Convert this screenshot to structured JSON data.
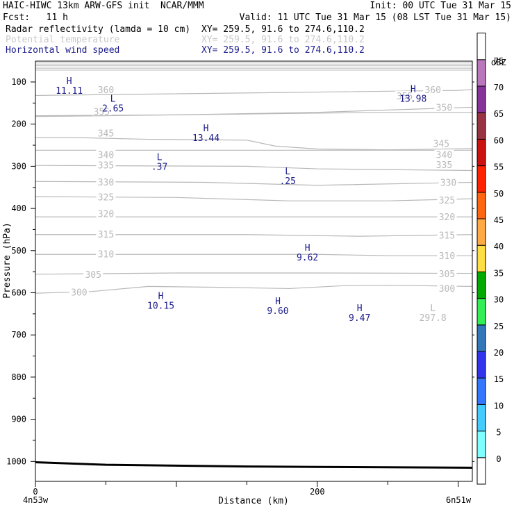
{
  "header": {
    "title": "HAIC-HIWC 13km ARW-GFS init  NCAR/MMM",
    "init": "Init: 00 UTC Tue 31 Mar 15",
    "fcst": "Fcst:   11 h",
    "valid": "Valid: 11 UTC Tue 31 Mar 15 (08 LST Tue 31 Mar 15)",
    "fields": [
      {
        "name": "Radar reflectivity (lamda = 10 cm)",
        "xy": "XY= 259.5, 91.6 to 274.6,110.2",
        "color": "#000000"
      },
      {
        "name": "Potential temperature",
        "xy": "XY= 259.5, 91.6 to 274.6,110.2",
        "color": "#c8c8c8"
      },
      {
        "name": "Horizontal wind speed",
        "xy": "XY= 259.5, 91.6 to 274.6,110.2",
        "color": "#1a1a8c"
      }
    ]
  },
  "chart_data": {
    "type": "line",
    "xlabel": "Distance (km)",
    "ylabel": "Pressure (hPa)",
    "xlim": [
      0,
      310
    ],
    "ylim_hpa": [
      1045,
      45
    ],
    "x_ticks": [
      0,
      200
    ],
    "y_ticks": [
      100,
      200,
      300,
      400,
      500,
      600,
      700,
      800,
      900,
      1000
    ],
    "x_endpoint_labels": {
      "left": "4n53w",
      "right": "6n51w"
    },
    "theta_contours": [
      {
        "label": "360",
        "points": [
          [
            0,
            132
          ],
          [
            300,
            120
          ],
          [
            310,
            118
          ]
        ],
        "label_at": [
          [
            50,
            118
          ],
          [
            282,
            118
          ]
        ]
      },
      {
        "label": "355",
        "points": [
          [
            0,
            180
          ],
          [
            100,
            178
          ],
          [
            200,
            172
          ],
          [
            310,
            160
          ]
        ],
        "label_at": [
          [
            47,
            170
          ],
          [
            262,
            133
          ]
        ]
      },
      {
        "label": "350",
        "points": [
          [
            0,
            182
          ],
          [
            150,
            176
          ],
          [
            250,
            172
          ],
          [
            310,
            172
          ]
        ],
        "label_at": [
          [
            290,
            160
          ]
        ]
      },
      {
        "label": "345",
        "points": [
          [
            0,
            232
          ],
          [
            30,
            232
          ],
          [
            80,
            236
          ],
          [
            150,
            238
          ],
          [
            170,
            252
          ],
          [
            200,
            259
          ],
          [
            250,
            261
          ],
          [
            310,
            258
          ]
        ],
        "label_at": [
          [
            50,
            221
          ],
          [
            288,
            246
          ]
        ]
      },
      {
        "label": "340",
        "points": [
          [
            0,
            262
          ],
          [
            100,
            262
          ],
          [
            200,
            262
          ],
          [
            310,
            262
          ]
        ],
        "label_at": [
          [
            50,
            272
          ],
          [
            290,
            272
          ]
        ]
      },
      {
        "label": "335",
        "points": [
          [
            0,
            298
          ],
          [
            150,
            300
          ],
          [
            200,
            306
          ],
          [
            310,
            310
          ]
        ],
        "label_at": [
          [
            50,
            297
          ],
          [
            290,
            296
          ]
        ]
      },
      {
        "label": "330",
        "points": [
          [
            0,
            336
          ],
          [
            120,
            338
          ],
          [
            200,
            345
          ],
          [
            310,
            338
          ]
        ],
        "label_at": [
          [
            50,
            337
          ],
          [
            293,
            338
          ]
        ]
      },
      {
        "label": "325",
        "points": [
          [
            0,
            372
          ],
          [
            100,
            374
          ],
          [
            180,
            382
          ],
          [
            250,
            382
          ],
          [
            310,
            377
          ]
        ],
        "label_at": [
          [
            50,
            373
          ],
          [
            292,
            380
          ]
        ]
      },
      {
        "label": "320",
        "points": [
          [
            0,
            420
          ],
          [
            150,
            420
          ],
          [
            230,
            420
          ],
          [
            310,
            420
          ]
        ],
        "label_at": [
          [
            50,
            412
          ],
          [
            292,
            420
          ]
        ]
      },
      {
        "label": "315",
        "points": [
          [
            0,
            462
          ],
          [
            150,
            462
          ],
          [
            230,
            466
          ],
          [
            310,
            462
          ]
        ],
        "label_at": [
          [
            50,
            461
          ],
          [
            292,
            463
          ]
        ]
      },
      {
        "label": "310",
        "points": [
          [
            0,
            509
          ],
          [
            100,
            509
          ],
          [
            200,
            509
          ],
          [
            250,
            512
          ],
          [
            310,
            512
          ]
        ],
        "label_at": [
          [
            50,
            508
          ],
          [
            292,
            512
          ]
        ]
      },
      {
        "label": "305",
        "points": [
          [
            0,
            556
          ],
          [
            100,
            553
          ],
          [
            200,
            553
          ],
          [
            310,
            554
          ]
        ],
        "label_at": [
          [
            41,
            556
          ],
          [
            292,
            555
          ]
        ]
      },
      {
        "label": "300",
        "points": [
          [
            0,
            601
          ],
          [
            40,
            597
          ],
          [
            80,
            585
          ],
          [
            130,
            587
          ],
          [
            180,
            590
          ],
          [
            220,
            583
          ],
          [
            250,
            582
          ],
          [
            310,
            585
          ]
        ],
        "label_at": [
          [
            31,
            598
          ],
          [
            292,
            589
          ]
        ]
      }
    ],
    "wind_extrema": [
      {
        "type": "H",
        "value": "11.11",
        "at": [
          24,
          100
        ]
      },
      {
        "type": "L",
        "value": "2.65",
        "at": [
          55,
          142
        ]
      },
      {
        "type": "H",
        "value": "13.44",
        "at": [
          121,
          212
        ]
      },
      {
        "type": "L",
        "value": ".37",
        "at": [
          88,
          280
        ]
      },
      {
        "type": "L",
        "value": ".25",
        "at": [
          179,
          314
        ]
      },
      {
        "type": "H",
        "value": "9.62",
        "at": [
          193,
          495
        ]
      },
      {
        "type": "H",
        "value": "10.15",
        "at": [
          89,
          610
        ]
      },
      {
        "type": "H",
        "value": "9.60",
        "at": [
          172,
          622
        ]
      },
      {
        "type": "H",
        "value": "9.47",
        "at": [
          230,
          639
        ]
      },
      {
        "type": "H",
        "value": "13.98",
        "at": [
          268,
          119
        ]
      }
    ],
    "theta_extrema": [
      {
        "type": "L",
        "value": "297.8",
        "at": [
          282,
          639
        ]
      }
    ],
    "terrain_hpa": [
      [
        0,
        1002
      ],
      [
        50,
        1008
      ],
      [
        100,
        1010
      ],
      [
        150,
        1012
      ],
      [
        200,
        1013
      ],
      [
        250,
        1014
      ],
      [
        310,
        1015
      ]
    ],
    "colorbar": {
      "title": "dBZ",
      "levels": [
        {
          "value": "0",
          "color": "#ffffff"
        },
        {
          "value": "5",
          "color": "#80ffff"
        },
        {
          "value": "10",
          "color": "#44ccff"
        },
        {
          "value": "15",
          "color": "#3377ff"
        },
        {
          "value": "20",
          "color": "#3333ee"
        },
        {
          "value": "25",
          "color": "#3377bb"
        },
        {
          "value": "30",
          "color": "#33ee55"
        },
        {
          "value": "35",
          "color": "#00aa00"
        },
        {
          "value": "40",
          "color": "#ffdd44"
        },
        {
          "value": "45",
          "color": "#ffaa44"
        },
        {
          "value": "50",
          "color": "#ff6611"
        },
        {
          "value": "55",
          "color": "#ff2200"
        },
        {
          "value": "60",
          "color": "#cc1111"
        },
        {
          "value": "65",
          "color": "#993344"
        },
        {
          "value": "70",
          "color": "#883399"
        },
        {
          "value": "75",
          "color": "#bb77bb"
        },
        {
          "value": "",
          "color": "#ffffff"
        }
      ]
    }
  }
}
